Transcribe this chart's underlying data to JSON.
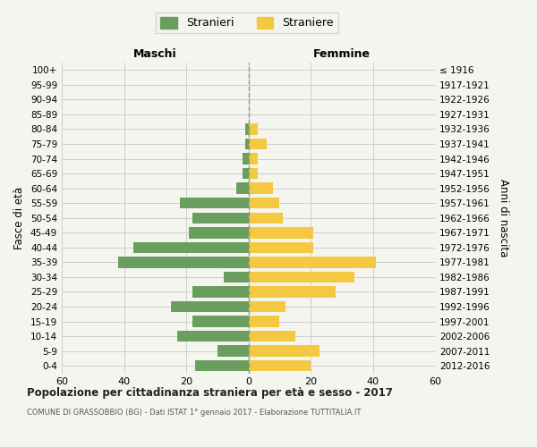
{
  "age_groups": [
    "0-4",
    "5-9",
    "10-14",
    "15-19",
    "20-24",
    "25-29",
    "30-34",
    "35-39",
    "40-44",
    "45-49",
    "50-54",
    "55-59",
    "60-64",
    "65-69",
    "70-74",
    "75-79",
    "80-84",
    "85-89",
    "90-94",
    "95-99",
    "100+"
  ],
  "birth_years": [
    "2012-2016",
    "2007-2011",
    "2002-2006",
    "1997-2001",
    "1992-1996",
    "1987-1991",
    "1982-1986",
    "1977-1981",
    "1972-1976",
    "1967-1971",
    "1962-1966",
    "1957-1961",
    "1952-1956",
    "1947-1951",
    "1942-1946",
    "1937-1941",
    "1932-1936",
    "1927-1931",
    "1922-1926",
    "1917-1921",
    "≤ 1916"
  ],
  "males": [
    17,
    10,
    23,
    18,
    25,
    18,
    8,
    42,
    37,
    19,
    18,
    22,
    4,
    2,
    2,
    1,
    1,
    0,
    0,
    0,
    0
  ],
  "females": [
    20,
    23,
    15,
    10,
    12,
    28,
    34,
    41,
    21,
    21,
    11,
    10,
    8,
    3,
    3,
    6,
    3,
    0,
    0,
    0,
    0
  ],
  "male_color": "#6a9e5e",
  "female_color": "#f5c842",
  "center_line_color": "#999966",
  "background_color": "#f5f5f0",
  "grid_color": "#cccccc",
  "title": "Popolazione per cittadinanza straniera per età e sesso - 2017",
  "subtitle": "COMUNE DI GRASSOBBIO (BG) - Dati ISTAT 1° gennaio 2017 - Elaborazione TUTTITALIA.IT",
  "xlabel_left": "Maschi",
  "xlabel_right": "Femmine",
  "ylabel_left": "Fasce di età",
  "ylabel_right": "Anni di nascita",
  "legend_male": "Stranieri",
  "legend_female": "Straniere",
  "xlim": 60
}
